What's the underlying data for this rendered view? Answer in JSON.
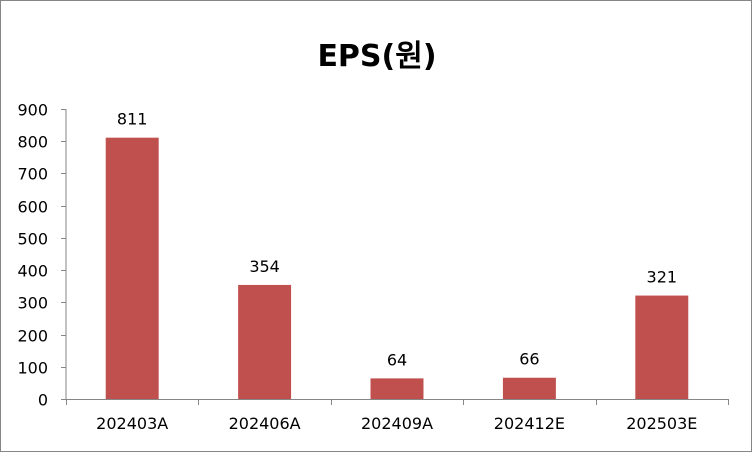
{
  "chart_data": {
    "type": "bar",
    "title": "EPS(원)",
    "xlabel": "",
    "ylabel": "",
    "categories": [
      "202403A",
      "202406A",
      "202409A",
      "202412E",
      "202503E"
    ],
    "values": [
      811,
      354,
      64,
      66,
      321
    ],
    "data_labels": [
      "811",
      "354",
      "64",
      "66",
      "321"
    ],
    "ylim": [
      0,
      900
    ],
    "yticks": [
      0,
      100,
      200,
      300,
      400,
      500,
      600,
      700,
      800,
      900
    ],
    "ytick_labels": [
      "0",
      "100",
      "200",
      "300",
      "400",
      "500",
      "600",
      "700",
      "800",
      "900"
    ],
    "grid": false,
    "legend": "none",
    "bar_color": "#C0504D"
  }
}
